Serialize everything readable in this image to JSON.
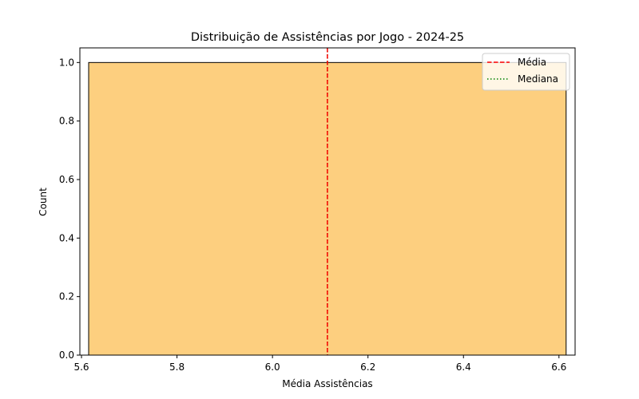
{
  "chart_data": {
    "type": "bar",
    "title": "Distribuição de Assistências por Jogo - 2024-25",
    "xlabel": "Média Assistências",
    "ylabel": "Count",
    "xlim": [
      5.5966,
      6.6338
    ],
    "ylim": [
      0,
      1.05
    ],
    "xticks": [
      "5.6",
      "5.8",
      "6.0",
      "6.2",
      "6.4",
      "6.6"
    ],
    "xtick_values": [
      5.6,
      5.8,
      6.0,
      6.2,
      6.4,
      6.6
    ],
    "yticks": [
      "0.0",
      "0.2",
      "0.4",
      "0.6",
      "0.8",
      "1.0"
    ],
    "ytick_values": [
      0.0,
      0.2,
      0.4,
      0.6,
      0.8,
      1.0
    ],
    "bins": [
      {
        "x0": 5.615,
        "x1": 6.615,
        "count": 1
      }
    ],
    "bar_color": "#fdcf7f",
    "bar_edge_color": "#000000",
    "mean_value": 6.115,
    "median_value": 6.115,
    "mean_color": "#ff0000",
    "median_color": "#008000",
    "legend": {
      "placement": "top-right",
      "items": [
        {
          "label": "Média",
          "style": "dashed",
          "color": "#ff0000"
        },
        {
          "label": "Mediana",
          "style": "dotted",
          "color": "#008000"
        }
      ]
    },
    "grid": false
  }
}
